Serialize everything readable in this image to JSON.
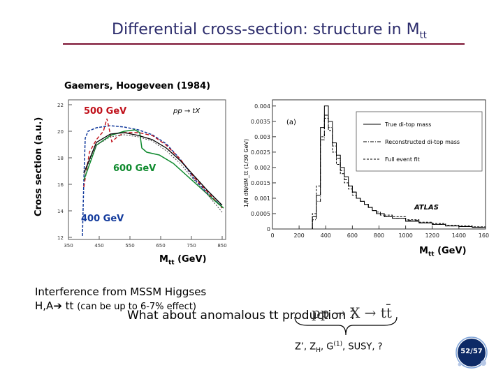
{
  "slide": {
    "title": "Differential cross-section: structure in M",
    "title_sub": "tt",
    "y_axis_label": "Cross section (a.u.)",
    "reference": "Gaemers, Hoogeveen (1984)",
    "mass_labels": {
      "m500": "500 GeV",
      "m600": "600 GeV",
      "m400": "400 GeV"
    },
    "x_axis_label_left": "M",
    "x_axis_label_left_sub": "tt",
    "x_axis_label_left_unit": " (GeV)",
    "x_axis_label_right": "M",
    "x_axis_label_right_sub": "tt",
    "x_axis_label_right_unit": " (GeV)",
    "interference_line1": "Interference from MSSM Higgses",
    "interference_line2": "H,A",
    "interference_line2_b": " tt ",
    "interference_note": "(can be up to 6-7% effect)",
    "anomalous": "What about anomalous tt production ?",
    "formula": "pp → X → tt̄",
    "models_text": "Z’, Z",
    "models_sub": "H",
    "models_mid": ", G",
    "models_sup": "(1)",
    "models_end": ", SUSY, ?",
    "page": "52/57",
    "colors": {
      "title": "#2b2b6b",
      "rule": "#7a1030",
      "red": "#c0101a",
      "green": "#0f8a2e",
      "blue": "#123a9c"
    }
  },
  "left_plot": {
    "inset_label": "pp → tX",
    "x_ticks": [
      "350",
      "450",
      "550",
      "650",
      "750",
      "850"
    ],
    "y_ticks": [
      "22",
      "20",
      "18",
      "16",
      "14",
      "12"
    ]
  },
  "chart_data": {
    "type": "line",
    "title": "",
    "annotation": "(a)",
    "watermark": "ATLAS",
    "ylabel": "1/N dN/dM_tt (1/30 GeV)",
    "xlabel": "",
    "xlim": [
      0,
      1600
    ],
    "ylim": [
      0,
      0.0042
    ],
    "x_ticks": [
      "0",
      "200",
      "400",
      "600",
      "800",
      "1000",
      "1200",
      "1400",
      "1600"
    ],
    "y_ticks": [
      "0",
      "0.0005",
      "0.001",
      "0.0015",
      "0.002",
      "0.0025",
      "0.003",
      "0.0035",
      "0.004"
    ],
    "x": [
      300,
      330,
      360,
      390,
      420,
      450,
      480,
      510,
      540,
      570,
      600,
      630,
      660,
      690,
      720,
      750,
      780,
      810,
      840,
      900,
      1000,
      1100,
      1200,
      1300,
      1400,
      1500
    ],
    "series": [
      {
        "name": "True di-top mass",
        "style": "solid",
        "values": [
          0.0004,
          0.0011,
          0.0033,
          0.004,
          0.0035,
          0.0028,
          0.0024,
          0.002,
          0.0017,
          0.0014,
          0.0012,
          0.001,
          0.0009,
          0.0008,
          0.0007,
          0.0006,
          0.0005,
          0.0005,
          0.0004,
          0.00035,
          0.00025,
          0.0002,
          0.00015,
          0.0001,
          8e-05,
          5e-05
        ]
      },
      {
        "name": "Reconstructed di-top mass",
        "style": "dashdot",
        "values": [
          0.0003,
          0.0009,
          0.0029,
          0.0037,
          0.0033,
          0.0027,
          0.0023,
          0.0019,
          0.0016,
          0.0014,
          0.0012,
          0.001,
          0.0009,
          0.0008,
          0.0007,
          0.0006,
          0.0005,
          0.00045,
          0.0004,
          0.00035,
          0.00028,
          0.0002,
          0.00015,
          0.0001,
          8e-05,
          6e-05
        ]
      },
      {
        "name": "Full event fit",
        "style": "dashed",
        "values": [
          0.0005,
          0.0014,
          0.003,
          0.0036,
          0.0032,
          0.0025,
          0.0021,
          0.0018,
          0.0015,
          0.0013,
          0.0011,
          0.001,
          0.0009,
          0.0008,
          0.0007,
          0.0006,
          0.00055,
          0.0005,
          0.00045,
          0.0004,
          0.0003,
          0.00022,
          0.00018,
          0.00012,
          0.0001,
          7e-05
        ]
      }
    ]
  }
}
